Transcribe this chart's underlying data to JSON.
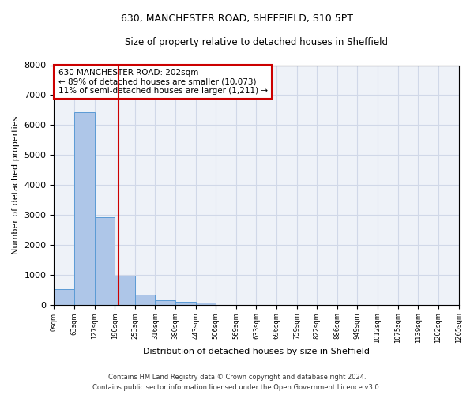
{
  "title1": "630, MANCHESTER ROAD, SHEFFIELD, S10 5PT",
  "title2": "Size of property relative to detached houses in Sheffield",
  "xlabel": "Distribution of detached houses by size in Sheffield",
  "ylabel": "Number of detached properties",
  "annotation_line1": "630 MANCHESTER ROAD: 202sqm",
  "annotation_line2": "← 89% of detached houses are smaller (10,073)",
  "annotation_line3": "11% of semi-detached houses are larger (1,211) →",
  "property_size": 202,
  "bin_edges": [
    0,
    63,
    127,
    190,
    253,
    316,
    380,
    443,
    506,
    569,
    633,
    696,
    759,
    822,
    886,
    949,
    1012,
    1075,
    1139,
    1202,
    1265
  ],
  "bar_heights": [
    530,
    6430,
    2920,
    970,
    340,
    160,
    110,
    75,
    0,
    0,
    0,
    0,
    0,
    0,
    0,
    0,
    0,
    0,
    0,
    0
  ],
  "bar_color": "#aec6e8",
  "bar_edge_color": "#5b9bd5",
  "red_line_color": "#cc0000",
  "grid_color": "#d0d8e8",
  "bg_color": "#eef2f8",
  "footer1": "Contains HM Land Registry data © Crown copyright and database right 2024.",
  "footer2": "Contains public sector information licensed under the Open Government Licence v3.0.",
  "ylim": [
    0,
    8000
  ],
  "yticks": [
    0,
    1000,
    2000,
    3000,
    4000,
    5000,
    6000,
    7000,
    8000
  ]
}
